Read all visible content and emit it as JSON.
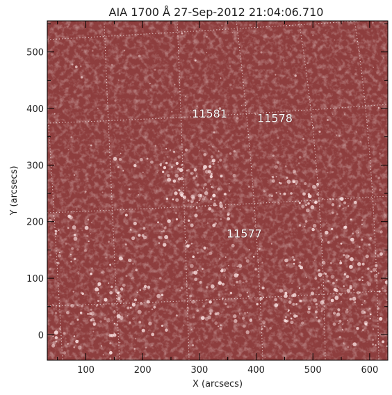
{
  "title": "AIA 1700 Å 27-Sep-2012 21:04:06.710",
  "x_axis": {
    "label": "X (arcsecs)",
    "range": [
      32,
      632
    ],
    "ticks": [
      100,
      200,
      300,
      400,
      500,
      600
    ],
    "tick_labels": [
      "100",
      "200",
      "300",
      "400",
      "500",
      "600"
    ]
  },
  "y_axis": {
    "label": "Y (arcsecs)",
    "range": [
      -45,
      555
    ],
    "ticks": [
      0,
      100,
      200,
      300,
      400,
      500
    ],
    "tick_labels": [
      "0",
      "100",
      "200",
      "300",
      "400",
      "500"
    ]
  },
  "active_regions": [
    {
      "number": "11581",
      "x": 318,
      "y": 384
    },
    {
      "number": "11578",
      "x": 433,
      "y": 376
    },
    {
      "number": "11577",
      "x": 379,
      "y": 172
    }
  ],
  "colors": {
    "background": "#8f3d3d",
    "background_dark": "#6e2727",
    "bright": "#fbe4e4",
    "grid": "#f0dede",
    "frame": "#000000"
  },
  "overlay": {
    "heliographic_grid": true
  }
}
